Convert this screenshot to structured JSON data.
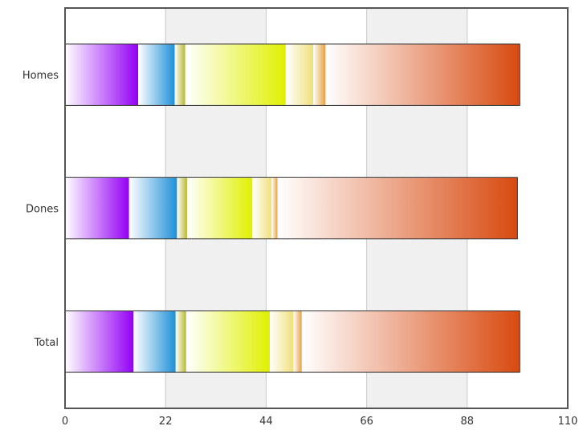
{
  "chart_data": {
    "type": "bar",
    "orientation": "horizontal",
    "stacked": true,
    "title": "",
    "xlabel": "",
    "ylabel": "",
    "xlim": [
      0,
      110
    ],
    "x_ticks": [
      0,
      22,
      44,
      66,
      88,
      110
    ],
    "grid": "vertical alternating bands",
    "legend": "none",
    "categories": [
      "Homes",
      "Dones",
      "Total"
    ],
    "series": [
      {
        "color": "#9400f5",
        "values": [
          16,
          14,
          15
        ]
      },
      {
        "color": "#1e90d8",
        "values": [
          8,
          10.5,
          9.2
        ]
      },
      {
        "color": "#b8b830",
        "values": [
          2.3,
          2.2,
          2.3
        ]
      },
      {
        "color": "#e0f000",
        "values": [
          22,
          14.3,
          18.3
        ]
      },
      {
        "color": "#f0e07a",
        "values": [
          6,
          4.2,
          5.2
        ]
      },
      {
        "color": "#e8a040",
        "values": [
          2.7,
          1.3,
          1.8
        ]
      },
      {
        "color": "#d84a10",
        "values": [
          42.5,
          52.5,
          47.7
        ]
      }
    ]
  }
}
